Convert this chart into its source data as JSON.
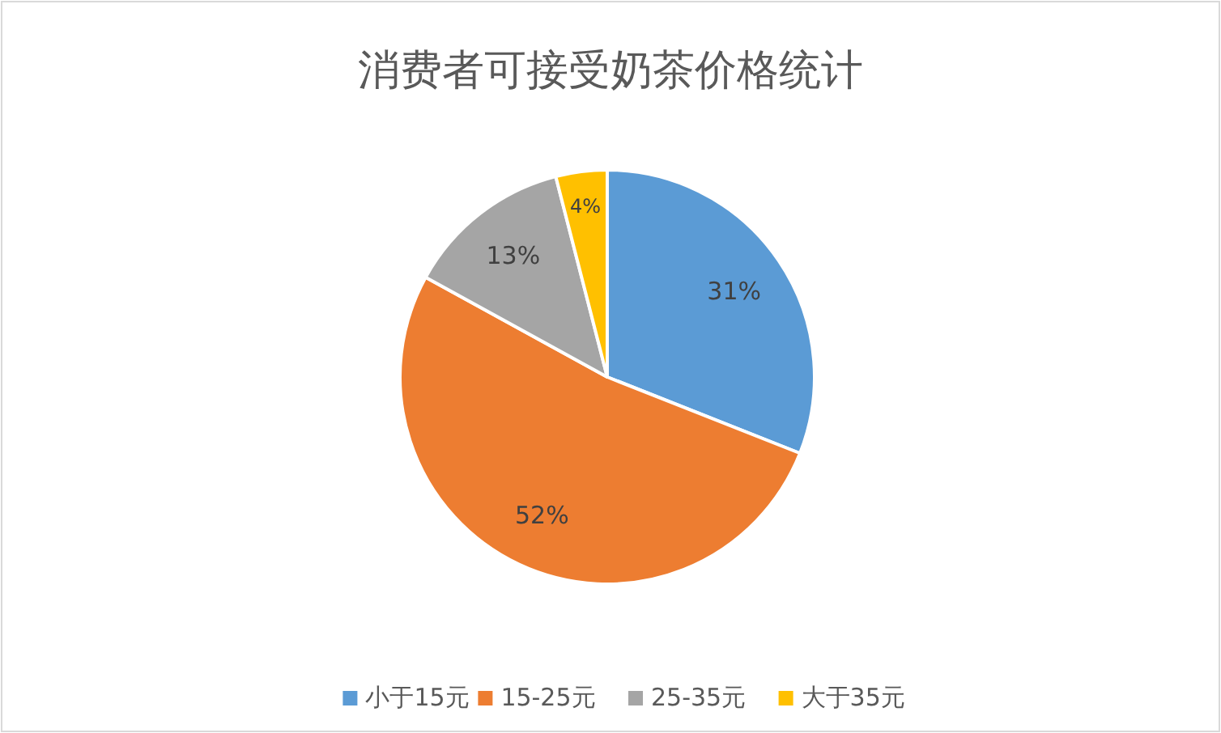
{
  "chart_data": {
    "type": "pie",
    "title": "消费者可接受奶茶价格统计",
    "categories": [
      "小于15元",
      "15-25元",
      "25-35元",
      "大于35元"
    ],
    "values": [
      31,
      52,
      13,
      4
    ],
    "colors": [
      "#5b9bd5",
      "#ed7d31",
      "#a5a5a5",
      "#ffc000"
    ],
    "value_labels": [
      "31%",
      "52%",
      "13%",
      "4%"
    ],
    "legend": "bottom"
  }
}
